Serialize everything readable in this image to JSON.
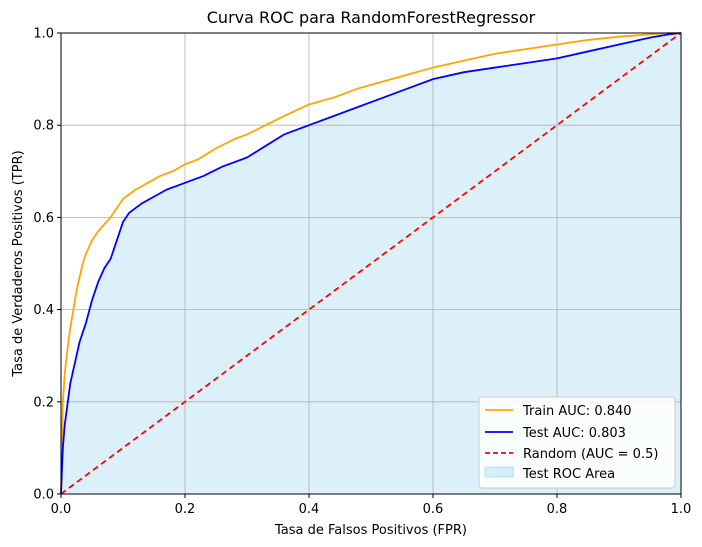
{
  "chart_data": {
    "type": "line",
    "title": "Curva ROC para RandomForestRegressor",
    "xlabel": "Tasa de Falsos Positivos (FPR)",
    "ylabel": "Tasa de Verdaderos Positivos (TPR)",
    "xlim": [
      0.0,
      1.0
    ],
    "ylim": [
      0.0,
      1.0
    ],
    "xticks": [
      "0.0",
      "0.2",
      "0.4",
      "0.6",
      "0.8",
      "1.0"
    ],
    "yticks": [
      "0.0",
      "0.2",
      "0.4",
      "0.6",
      "0.8",
      "1.0"
    ],
    "grid": true,
    "legend_position": "lower-right",
    "series": [
      {
        "name": "Train AUC: 0.840",
        "color": "#ffa500",
        "style": "solid",
        "x": [
          0,
          0.003,
          0.006,
          0.01,
          0.015,
          0.02,
          0.025,
          0.03,
          0.035,
          0.04,
          0.05,
          0.06,
          0.07,
          0.08,
          0.09,
          0.1,
          0.11,
          0.12,
          0.14,
          0.16,
          0.18,
          0.2,
          0.22,
          0.25,
          0.28,
          0.3,
          0.33,
          0.36,
          0.4,
          0.44,
          0.48,
          0.52,
          0.56,
          0.6,
          0.65,
          0.7,
          0.75,
          0.8,
          0.85,
          0.9,
          0.95,
          0.98,
          1.0
        ],
        "y": [
          0,
          0.2,
          0.26,
          0.31,
          0.36,
          0.4,
          0.44,
          0.47,
          0.5,
          0.52,
          0.55,
          0.57,
          0.585,
          0.6,
          0.62,
          0.64,
          0.65,
          0.66,
          0.675,
          0.69,
          0.7,
          0.715,
          0.725,
          0.75,
          0.77,
          0.78,
          0.8,
          0.82,
          0.845,
          0.86,
          0.88,
          0.895,
          0.91,
          0.925,
          0.94,
          0.955,
          0.965,
          0.975,
          0.985,
          0.992,
          0.997,
          1.0,
          1.0
        ]
      },
      {
        "name": "Test AUC: 0.803",
        "color": "#0000ff",
        "style": "solid",
        "x": [
          0,
          0.003,
          0.006,
          0.01,
          0.015,
          0.02,
          0.025,
          0.03,
          0.035,
          0.04,
          0.05,
          0.06,
          0.07,
          0.08,
          0.09,
          0.1,
          0.11,
          0.12,
          0.13,
          0.15,
          0.17,
          0.2,
          0.23,
          0.26,
          0.3,
          0.33,
          0.36,
          0.4,
          0.44,
          0.48,
          0.52,
          0.56,
          0.6,
          0.65,
          0.7,
          0.75,
          0.8,
          0.85,
          0.9,
          0.95,
          0.98,
          1.0
        ],
        "y": [
          0,
          0.1,
          0.15,
          0.19,
          0.24,
          0.27,
          0.3,
          0.33,
          0.35,
          0.37,
          0.42,
          0.46,
          0.49,
          0.51,
          0.55,
          0.59,
          0.61,
          0.62,
          0.63,
          0.645,
          0.66,
          0.675,
          0.69,
          0.71,
          0.73,
          0.755,
          0.78,
          0.8,
          0.82,
          0.84,
          0.86,
          0.88,
          0.9,
          0.915,
          0.925,
          0.935,
          0.945,
          0.96,
          0.975,
          0.99,
          0.997,
          1.0
        ]
      },
      {
        "name": "Random (AUC = 0.5)",
        "color": "#ff0000",
        "style": "dashed",
        "x": [
          0,
          1
        ],
        "y": [
          0,
          1
        ]
      }
    ],
    "area": {
      "name": "Test ROC Area",
      "color": "#87ceeb",
      "opacity": 0.3,
      "under_series": "Test AUC: 0.803"
    }
  }
}
